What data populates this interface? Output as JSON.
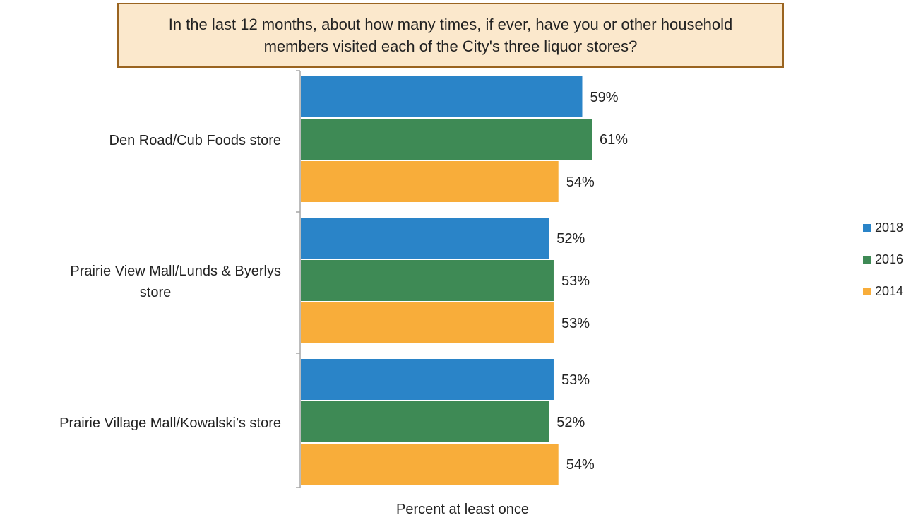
{
  "chart_data": {
    "type": "bar",
    "orientation": "horizontal",
    "title": "In the last 12 months, about how many times, if ever, have you or other household members visited each of the City's three liquor stores?",
    "categories": [
      "Den Road/Cub Foods store",
      "Prairie View Mall/Lunds & Byerlys store",
      "Prairie Village Mall/Kowalski’s store"
    ],
    "series": [
      {
        "name": "2018",
        "color": "#2a84c8",
        "values": [
          59,
          52,
          53
        ],
        "labels": [
          "59%",
          "52%",
          "53%"
        ]
      },
      {
        "name": "2016",
        "color": "#3e8a55",
        "values": [
          61,
          53,
          52
        ],
        "labels": [
          "61%",
          "53%",
          "52%"
        ]
      },
      {
        "name": "2014",
        "color": "#f8ad3a",
        "values": [
          54,
          53,
          54
        ],
        "labels": [
          "54%",
          "53%",
          "54%"
        ]
      }
    ],
    "xlabel": "Percent at least once",
    "ylabel": "",
    "xlim": [
      0,
      100
    ],
    "grid": false,
    "legend_position": "right"
  }
}
